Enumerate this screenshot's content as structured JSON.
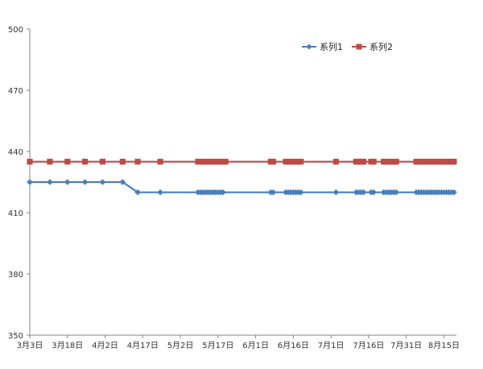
{
  "chart_data": {
    "type": "line",
    "title": "",
    "xlabel": "",
    "ylabel": "",
    "ylim": [
      350,
      500
    ],
    "yticks": [
      350,
      380,
      410,
      440,
      470,
      500
    ],
    "xlim": [
      "2013-03-03",
      "2013-08-20"
    ],
    "xticks": [
      "2013-03-03",
      "2013-03-18",
      "2013-04-02",
      "2013-04-17",
      "2013-05-02",
      "2013-05-17",
      "2013-06-01",
      "2013-06-16",
      "2013-07-01",
      "2013-07-16",
      "2013-07-31",
      "2013-08-15"
    ],
    "xtick_labels": [
      "3月3日",
      "3月18日",
      "4月2日",
      "4月17日",
      "5月2日",
      "5月17日",
      "6月1日",
      "6月16日",
      "7月1日",
      "7月16日",
      "7月31日",
      "8月15日"
    ],
    "legend_position": "top-right",
    "grid": false,
    "series": [
      {
        "name": "系列1",
        "color": "#4a7ebb",
        "marker": "diamond",
        "points": [
          [
            "2013-03-03",
            425
          ],
          [
            "2013-03-11",
            425
          ],
          [
            "2013-03-18",
            425
          ],
          [
            "2013-03-25",
            425
          ],
          [
            "2013-04-01",
            425
          ],
          [
            "2013-04-09",
            425
          ],
          [
            "2013-04-15",
            420
          ],
          [
            "2013-04-24",
            420
          ],
          [
            "2013-05-09",
            420
          ],
          [
            "2013-05-10",
            420
          ],
          [
            "2013-05-11",
            420
          ],
          [
            "2013-05-12",
            420
          ],
          [
            "2013-05-13",
            420
          ],
          [
            "2013-05-14",
            420
          ],
          [
            "2013-05-15",
            420
          ],
          [
            "2013-05-16",
            420
          ],
          [
            "2013-05-17",
            420
          ],
          [
            "2013-05-18",
            420
          ],
          [
            "2013-05-19",
            420
          ],
          [
            "2013-06-07",
            420
          ],
          [
            "2013-06-08",
            420
          ],
          [
            "2013-06-13",
            420
          ],
          [
            "2013-06-14",
            420
          ],
          [
            "2013-06-15",
            420
          ],
          [
            "2013-06-16",
            420
          ],
          [
            "2013-06-17",
            420
          ],
          [
            "2013-06-18",
            420
          ],
          [
            "2013-06-19",
            420
          ],
          [
            "2013-07-03",
            420
          ],
          [
            "2013-07-11",
            420
          ],
          [
            "2013-07-12",
            420
          ],
          [
            "2013-07-13",
            420
          ],
          [
            "2013-07-14",
            420
          ],
          [
            "2013-07-17",
            420
          ],
          [
            "2013-07-18",
            420
          ],
          [
            "2013-07-22",
            420
          ],
          [
            "2013-07-23",
            420
          ],
          [
            "2013-07-24",
            420
          ],
          [
            "2013-07-25",
            420
          ],
          [
            "2013-07-26",
            420
          ],
          [
            "2013-07-27",
            420
          ],
          [
            "2013-08-04",
            420
          ],
          [
            "2013-08-05",
            420
          ],
          [
            "2013-08-06",
            420
          ],
          [
            "2013-08-07",
            420
          ],
          [
            "2013-08-08",
            420
          ],
          [
            "2013-08-09",
            420
          ],
          [
            "2013-08-10",
            420
          ],
          [
            "2013-08-11",
            420
          ],
          [
            "2013-08-12",
            420
          ],
          [
            "2013-08-13",
            420
          ],
          [
            "2013-08-14",
            420
          ],
          [
            "2013-08-15",
            420
          ],
          [
            "2013-08-16",
            420
          ],
          [
            "2013-08-17",
            420
          ],
          [
            "2013-08-18",
            420
          ],
          [
            "2013-08-19",
            420
          ]
        ]
      },
      {
        "name": "系列2",
        "color": "#be4b48",
        "marker": "square",
        "points": [
          [
            "2013-03-03",
            435
          ],
          [
            "2013-03-11",
            435
          ],
          [
            "2013-03-18",
            435
          ],
          [
            "2013-03-25",
            435
          ],
          [
            "2013-04-01",
            435
          ],
          [
            "2013-04-09",
            435
          ],
          [
            "2013-04-15",
            435
          ],
          [
            "2013-04-24",
            435
          ],
          [
            "2013-05-09",
            435
          ],
          [
            "2013-05-10",
            435
          ],
          [
            "2013-05-11",
            435
          ],
          [
            "2013-05-12",
            435
          ],
          [
            "2013-05-13",
            435
          ],
          [
            "2013-05-14",
            435
          ],
          [
            "2013-05-15",
            435
          ],
          [
            "2013-05-16",
            435
          ],
          [
            "2013-05-17",
            435
          ],
          [
            "2013-05-18",
            435
          ],
          [
            "2013-05-19",
            435
          ],
          [
            "2013-05-20",
            435
          ],
          [
            "2013-06-07",
            435
          ],
          [
            "2013-06-08",
            435
          ],
          [
            "2013-06-13",
            435
          ],
          [
            "2013-06-14",
            435
          ],
          [
            "2013-06-15",
            435
          ],
          [
            "2013-06-16",
            435
          ],
          [
            "2013-06-17",
            435
          ],
          [
            "2013-06-18",
            435
          ],
          [
            "2013-06-19",
            435
          ],
          [
            "2013-07-03",
            435
          ],
          [
            "2013-07-11",
            435
          ],
          [
            "2013-07-12",
            435
          ],
          [
            "2013-07-13",
            435
          ],
          [
            "2013-07-14",
            435
          ],
          [
            "2013-07-17",
            435
          ],
          [
            "2013-07-18",
            435
          ],
          [
            "2013-07-22",
            435
          ],
          [
            "2013-07-23",
            435
          ],
          [
            "2013-07-24",
            435
          ],
          [
            "2013-07-25",
            435
          ],
          [
            "2013-07-26",
            435
          ],
          [
            "2013-07-27",
            435
          ],
          [
            "2013-08-04",
            435
          ],
          [
            "2013-08-05",
            435
          ],
          [
            "2013-08-06",
            435
          ],
          [
            "2013-08-07",
            435
          ],
          [
            "2013-08-08",
            435
          ],
          [
            "2013-08-09",
            435
          ],
          [
            "2013-08-10",
            435
          ],
          [
            "2013-08-11",
            435
          ],
          [
            "2013-08-12",
            435
          ],
          [
            "2013-08-13",
            435
          ],
          [
            "2013-08-14",
            435
          ],
          [
            "2013-08-15",
            435
          ],
          [
            "2013-08-16",
            435
          ],
          [
            "2013-08-17",
            435
          ],
          [
            "2013-08-18",
            435
          ],
          [
            "2013-08-19",
            435
          ]
        ]
      }
    ]
  }
}
